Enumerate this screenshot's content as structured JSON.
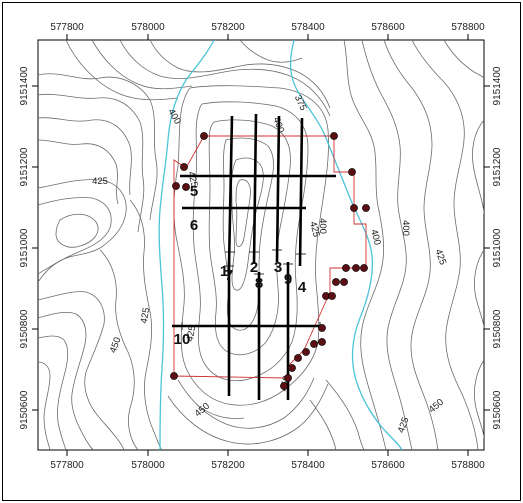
{
  "map": {
    "x_ticks": [
      "577800",
      "578000",
      "578200",
      "578400",
      "578600",
      "578800"
    ],
    "y_ticks": [
      "9151400",
      "9151200",
      "9151000",
      "9150800",
      "9150600",
      "9150400"
    ],
    "contour_labels": [
      "400",
      "375",
      "400",
      "425",
      "425",
      "400",
      "400",
      "425",
      "425",
      "400",
      "450",
      "425",
      "425",
      "450",
      "450",
      "425",
      "450"
    ],
    "line_labels": [
      "1",
      "2",
      "3",
      "4",
      "5",
      "6",
      "7",
      "8",
      "9",
      "10"
    ],
    "colors": {
      "contour": "#6b6b6b",
      "river": "#4cc4d8",
      "boundary": "#d03030",
      "survey_line": "#000000",
      "point_fill": "#5a0f12",
      "frame": "#000000"
    }
  }
}
